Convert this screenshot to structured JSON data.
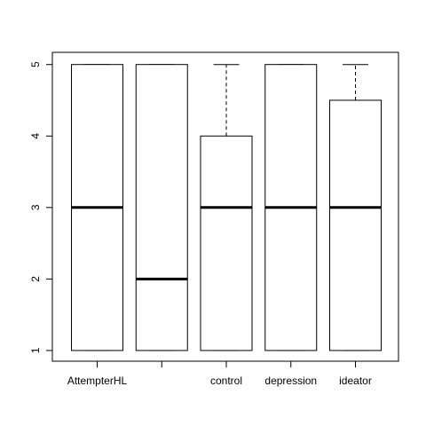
{
  "chart_data": {
    "type": "boxplot",
    "categories": [
      "AttempterHL",
      "",
      "control",
      "depression",
      "ideator"
    ],
    "boxes": [
      {
        "category": "AttempterHL",
        "min": 1,
        "q1": 1,
        "median": 3,
        "q3": 5,
        "max": 5
      },
      {
        "category": "",
        "min": 1,
        "q1": 1,
        "median": 2,
        "q3": 5,
        "max": 5
      },
      {
        "category": "control",
        "min": 1,
        "q1": 1,
        "median": 3,
        "q3": 4,
        "max": 5
      },
      {
        "category": "depression",
        "min": 1,
        "q1": 1,
        "median": 3,
        "q3": 5,
        "max": 5
      },
      {
        "category": "ideator",
        "min": 1,
        "q1": 1,
        "median": 3,
        "q3": 4.5,
        "max": 5
      }
    ],
    "y_ticks": [
      1,
      2,
      3,
      4,
      5
    ],
    "ylim": [
      0.85,
      5.17
    ],
    "grid": false,
    "title": "",
    "xlabel": "",
    "ylabel": ""
  }
}
